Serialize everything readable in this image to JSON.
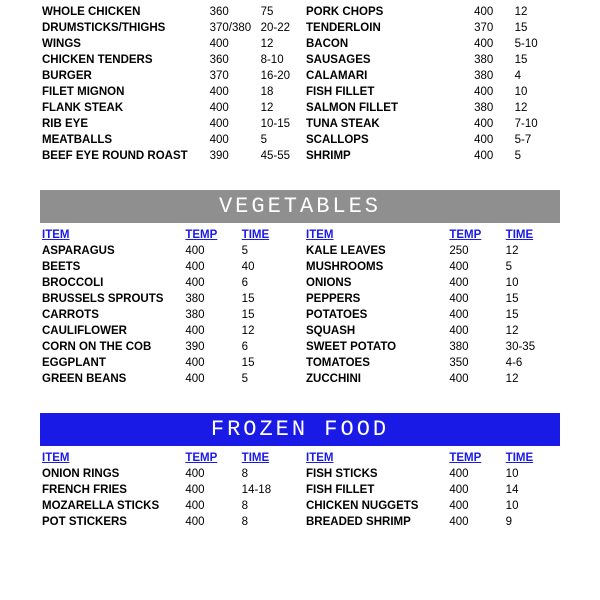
{
  "headers": {
    "item": "ITEM",
    "temp": "TEMP",
    "time": "TIME"
  },
  "banners": {
    "vegetables": {
      "label": "VEGETABLES",
      "bg": "#8f8f8f",
      "fg": "#ffffff"
    },
    "frozen": {
      "label": "FROZEN  FOOD",
      "bg": "#1a1ae6",
      "fg": "#ffffff"
    }
  },
  "header_color": "#1a1ae6",
  "meat": {
    "left": [
      {
        "item": "WHOLE CHICKEN",
        "temp": "360",
        "time": "75"
      },
      {
        "item": "DRUMSTICKS/THIGHS",
        "temp": "370/380",
        "time": "20-22"
      },
      {
        "item": "WINGS",
        "temp": "400",
        "time": "12"
      },
      {
        "item": "CHICKEN TENDERS",
        "temp": "360",
        "time": "8-10"
      },
      {
        "item": "BURGER",
        "temp": "370",
        "time": "16-20"
      },
      {
        "item": "FILET MIGNON",
        "temp": "400",
        "time": "18"
      },
      {
        "item": "FLANK STEAK",
        "temp": "400",
        "time": "12"
      },
      {
        "item": "RIB EYE",
        "temp": "400",
        "time": "10-15"
      },
      {
        "item": "MEATBALLS",
        "temp": "400",
        "time": "5"
      },
      {
        "item": "BEEF EYE ROUND ROAST",
        "temp": "390",
        "time": "45-55"
      }
    ],
    "right": [
      {
        "item": "PORK CHOPS",
        "temp": "400",
        "time": "12"
      },
      {
        "item": "TENDERLOIN",
        "temp": "370",
        "time": "15"
      },
      {
        "item": "BACON",
        "temp": "400",
        "time": "5-10"
      },
      {
        "item": "SAUSAGES",
        "temp": "380",
        "time": "15"
      },
      {
        "item": "CALAMARI",
        "temp": "380",
        "time": "4"
      },
      {
        "item": "FISH FILLET",
        "temp": "400",
        "time": "10"
      },
      {
        "item": "SALMON FILLET",
        "temp": "380",
        "time": "12"
      },
      {
        "item": "TUNA STEAK",
        "temp": "400",
        "time": "7-10"
      },
      {
        "item": "SCALLOPS",
        "temp": "400",
        "time": "5-7"
      },
      {
        "item": "SHRIMP",
        "temp": "400",
        "time": "5"
      }
    ]
  },
  "vegetables": {
    "left": [
      {
        "item": "ASPARAGUS",
        "temp": "400",
        "time": "5"
      },
      {
        "item": "BEETS",
        "temp": "400",
        "time": "40"
      },
      {
        "item": "BROCCOLI",
        "temp": "400",
        "time": "6"
      },
      {
        "item": "BRUSSELS SPROUTS",
        "temp": "380",
        "time": "15"
      },
      {
        "item": "CARROTS",
        "temp": "380",
        "time": "15"
      },
      {
        "item": "CAULIFLOWER",
        "temp": "400",
        "time": "12"
      },
      {
        "item": "CORN ON THE COB",
        "temp": "390",
        "time": "6"
      },
      {
        "item": "EGGPLANT",
        "temp": "400",
        "time": "15"
      },
      {
        "item": "GREEN BEANS",
        "temp": "400",
        "time": "5"
      }
    ],
    "right": [
      {
        "item": "KALE LEAVES",
        "temp": "250",
        "time": "12"
      },
      {
        "item": "MUSHROOMS",
        "temp": "400",
        "time": "5"
      },
      {
        "item": "ONIONS",
        "temp": "400",
        "time": "10"
      },
      {
        "item": "PEPPERS",
        "temp": "400",
        "time": "15"
      },
      {
        "item": "POTATOES",
        "temp": "400",
        "time": "15"
      },
      {
        "item": "SQUASH",
        "temp": "400",
        "time": "12"
      },
      {
        "item": "SWEET POTATO",
        "temp": "380",
        "time": "30-35"
      },
      {
        "item": "TOMATOES",
        "temp": "350",
        "time": "4-6"
      },
      {
        "item": "ZUCCHINI",
        "temp": "400",
        "time": "12"
      }
    ]
  },
  "frozen": {
    "left": [
      {
        "item": "ONION RINGS",
        "temp": "400",
        "time": "8"
      },
      {
        "item": "FRENCH FRIES",
        "temp": "400",
        "time": "14-18"
      },
      {
        "item": "MOZARELLA STICKS",
        "temp": "400",
        "time": "8"
      },
      {
        "item": "POT STICKERS",
        "temp": "400",
        "time": "8"
      }
    ],
    "right": [
      {
        "item": "FISH STICKS",
        "temp": "400",
        "time": "10"
      },
      {
        "item": "FISH FILLET",
        "temp": "400",
        "time": "14"
      },
      {
        "item": "CHICKEN NUGGETS",
        "temp": "400",
        "time": "10"
      },
      {
        "item": "BREADED SHRIMP",
        "temp": "400",
        "time": "9"
      }
    ]
  }
}
